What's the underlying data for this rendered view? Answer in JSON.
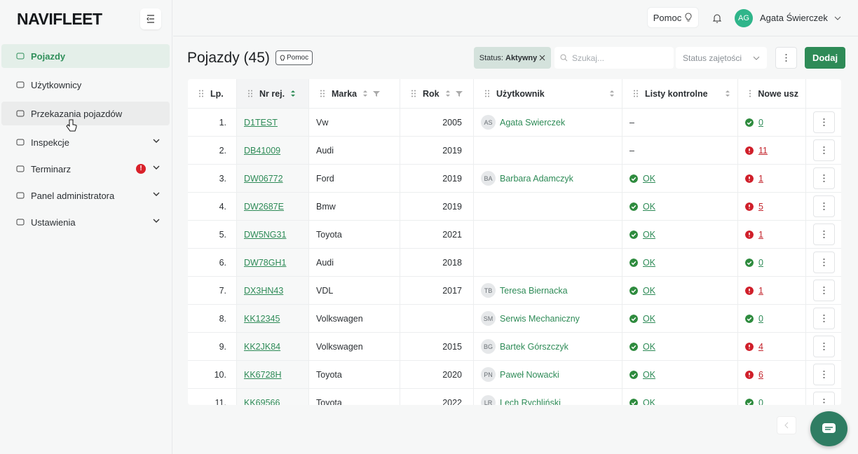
{
  "sidebar": {
    "logo": "NAVIFLEET",
    "menu": [
      {
        "label": "Pojazdy",
        "active": true
      },
      {
        "label": "Użytkownicy"
      },
      {
        "label": "Przekazania pojazdów",
        "hover": true
      },
      {
        "label": "Inspekcje",
        "submenu": true
      },
      {
        "label": "Terminarz",
        "submenu": true,
        "alert": true
      },
      {
        "label": "Panel administratora",
        "submenu": true
      },
      {
        "label": "Ustawienia",
        "submenu": true
      }
    ]
  },
  "topbar": {
    "help": "Pomoc",
    "user_initials": "AG",
    "user_name": "Agata Świerczek"
  },
  "page": {
    "title": "Pojazdy (45)",
    "help": "Pomoc",
    "filter_label": "Status:",
    "filter_value": "Aktywny",
    "search_placeholder": "Szukaj...",
    "status_select": "Status zajętości",
    "add_button": "Dodaj"
  },
  "table": {
    "columns": [
      "Lp.",
      "Nr rej.",
      "Marka",
      "Rok",
      "Użytkownik",
      "Listy kontrolne",
      "Nowe usz"
    ],
    "rows": [
      {
        "lp": "1.",
        "reg": "D1TEST",
        "make": "Vw",
        "year": 2005,
        "user_initials": "AS",
        "user_name": "Agata Swierczek",
        "checklist": "–",
        "damage": 0
      },
      {
        "lp": "2.",
        "reg": "DB41009",
        "make": "Audi",
        "year": 2019,
        "checklist": "–",
        "damage": 11
      },
      {
        "lp": "3.",
        "reg": "DW06772",
        "make": "Ford",
        "year": 2019,
        "user_initials": "BA",
        "user_name": "Barbara Adamczyk",
        "checklist": "OK",
        "damage": 1
      },
      {
        "lp": "4.",
        "reg": "DW2687E",
        "make": "Bmw",
        "year": 2019,
        "checklist": "OK",
        "damage": 5
      },
      {
        "lp": "5.",
        "reg": "DW5NG31",
        "make": "Toyota",
        "year": 2021,
        "checklist": "OK",
        "damage": 1
      },
      {
        "lp": "6.",
        "reg": "DW78GH1",
        "make": "Audi",
        "year": 2018,
        "checklist": "OK",
        "damage": 0
      },
      {
        "lp": "7.",
        "reg": "DX3HN43",
        "make": "VDL",
        "year": 2017,
        "user_initials": "TB",
        "user_name": "Teresa Biernacka",
        "checklist": "OK",
        "damage": 1
      },
      {
        "lp": "8.",
        "reg": "KK12345",
        "make": "Volkswagen",
        "user_initials": "SM",
        "user_name": "Serwis Mechaniczny",
        "checklist": "OK",
        "damage": 0
      },
      {
        "lp": "9.",
        "reg": "KK2JK84",
        "make": "Volkswagen",
        "year": 2015,
        "user_initials": "BG",
        "user_name": "Bartek Górszczyk",
        "checklist": "OK",
        "damage": 4
      },
      {
        "lp": "10.",
        "reg": "KK6728H",
        "make": "Toyota",
        "year": 2020,
        "user_initials": "PN",
        "user_name": "Paweł Nowacki",
        "checklist": "OK",
        "damage": 6
      },
      {
        "lp": "11.",
        "reg": "KK69566",
        "make": "Toyota",
        "year": 2022,
        "user_initials": "LR",
        "user_name": "Lech Rychliński",
        "checklist": "OK",
        "damage": 0
      }
    ]
  }
}
